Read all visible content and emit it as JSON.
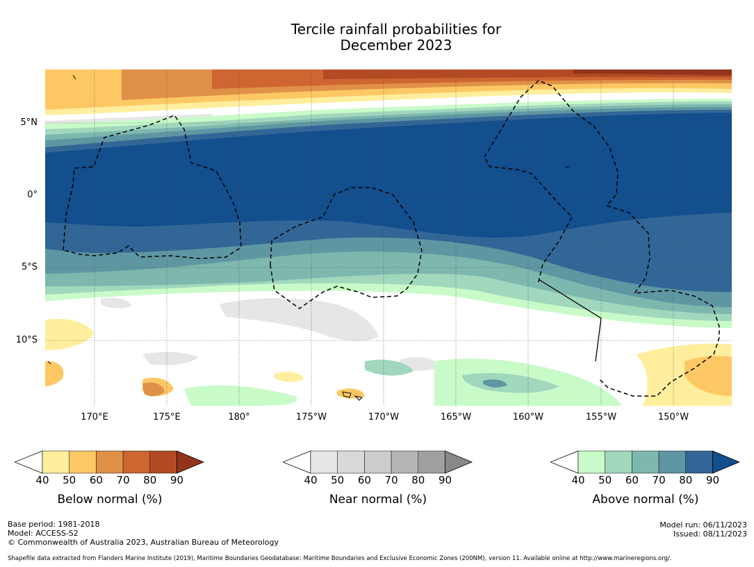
{
  "title": {
    "line1": "Tercile rainfall probabilities for",
    "line2": "December 2023"
  },
  "map": {
    "lat_labels": [
      "5°N",
      "0°",
      "5°S",
      "10°S"
    ],
    "lon_labels": [
      "170°E",
      "175°E",
      "180°",
      "175°W",
      "170°W",
      "165°W",
      "160°W",
      "155°W",
      "150°W"
    ]
  },
  "legends": [
    {
      "label": "Below normal (%)",
      "ticks": [
        "40",
        "50",
        "60",
        "70",
        "80",
        "90"
      ],
      "colors": [
        "#ffee9d",
        "#fdc864",
        "#e09148",
        "#cf6632",
        "#b24b24",
        "#92331c"
      ]
    },
    {
      "label": "Near normal (%)",
      "ticks": [
        "40",
        "50",
        "60",
        "70",
        "80",
        "90"
      ],
      "colors": [
        "#e6e6e6",
        "#d9d9d9",
        "#cccccc",
        "#b5b5b5",
        "#a0a0a0",
        "#888888"
      ]
    },
    {
      "label": "Above normal (%)",
      "ticks": [
        "40",
        "50",
        "60",
        "70",
        "80",
        "90"
      ],
      "colors": [
        "#c8fbc8",
        "#a0d7bd",
        "#7eb7ae",
        "#5e96a2",
        "#326696",
        "#134e8d"
      ]
    }
  ],
  "footer": {
    "base_period": "Base period: 1981-2018",
    "model": "Model: ACCESS-S2",
    "copyright": "© Commonwealth of Australia 2023, Australian Bureau of Meteorology",
    "model_run": "Model run: 06/11/2023",
    "issued": "Issued: 08/11/2023",
    "shapefile_note": "Shapefile data extracted from Flanders Marine Institute (2019), Maritime Boundaries Geodatabase: Maritime Boundaries and Exclusive Economic Zones (200NM), version 11. Available online at http://www.marineregions.org/."
  }
}
